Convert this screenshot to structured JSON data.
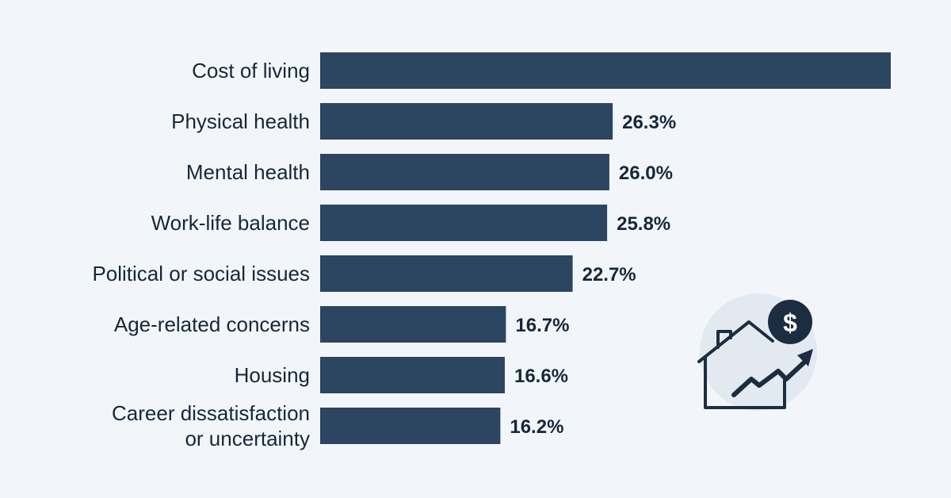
{
  "chart_data": {
    "type": "bar",
    "orientation": "horizontal",
    "categories": [
      [
        "Cost of living"
      ],
      [
        "Physical health"
      ],
      [
        "Mental health"
      ],
      [
        "Work-life balance"
      ],
      [
        "Political or social issues"
      ],
      [
        "Age-related concerns"
      ],
      [
        "Housing"
      ],
      [
        "Career dissatisfaction",
        "or uncertainty"
      ]
    ],
    "values": [
      51.3,
      26.3,
      26.0,
      25.8,
      22.7,
      16.7,
      16.6,
      16.2
    ],
    "value_labels": [
      "",
      "26.3%",
      "26.0%",
      "25.8%",
      "22.7%",
      "16.7%",
      "16.6%",
      "16.2%"
    ],
    "title": "",
    "xlabel": "",
    "ylabel": "",
    "xlim": [
      0,
      51.3
    ],
    "grid": false,
    "legend": "none",
    "colors": {
      "bar": "#2c4560",
      "text": "#17273a",
      "background": "#f2f6fa"
    }
  },
  "illustration": {
    "icons": [
      "house-icon",
      "dollar-coin-icon",
      "trend-arrow-icon"
    ],
    "coin_symbol": "$",
    "colors": {
      "circle": "#e2e9f0",
      "stroke": "#1c2d41",
      "coin": "#1c2d41",
      "coin_text": "#ffffff"
    }
  }
}
